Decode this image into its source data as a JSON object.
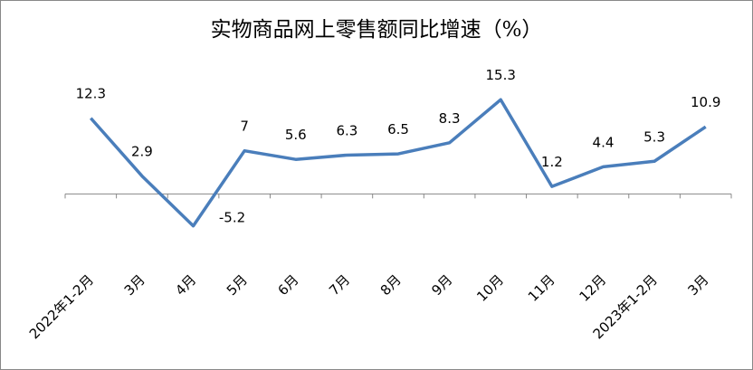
{
  "chart_data": {
    "type": "line",
    "title": "实物商品网上零售额同比增速（%）",
    "categories": [
      "2022年1-2月",
      "3月",
      "4月",
      "5月",
      "6月",
      "7月",
      "8月",
      "9月",
      "10月",
      "11月",
      "12月",
      "2023年1-2月",
      "3月"
    ],
    "values": [
      12.3,
      2.9,
      -5.2,
      7,
      5.6,
      6.3,
      6.5,
      8.3,
      15.3,
      1.2,
      4.4,
      5.3,
      10.9
    ],
    "value_labels": [
      "12.3",
      "2.9",
      "-5.2",
      "7",
      "5.6",
      "6.3",
      "6.5",
      "8.3",
      "15.3",
      "1.2",
      "4.4",
      "5.3",
      "10.9"
    ],
    "color": "#4a7ebb",
    "ylim": [
      -17,
      24
    ]
  }
}
